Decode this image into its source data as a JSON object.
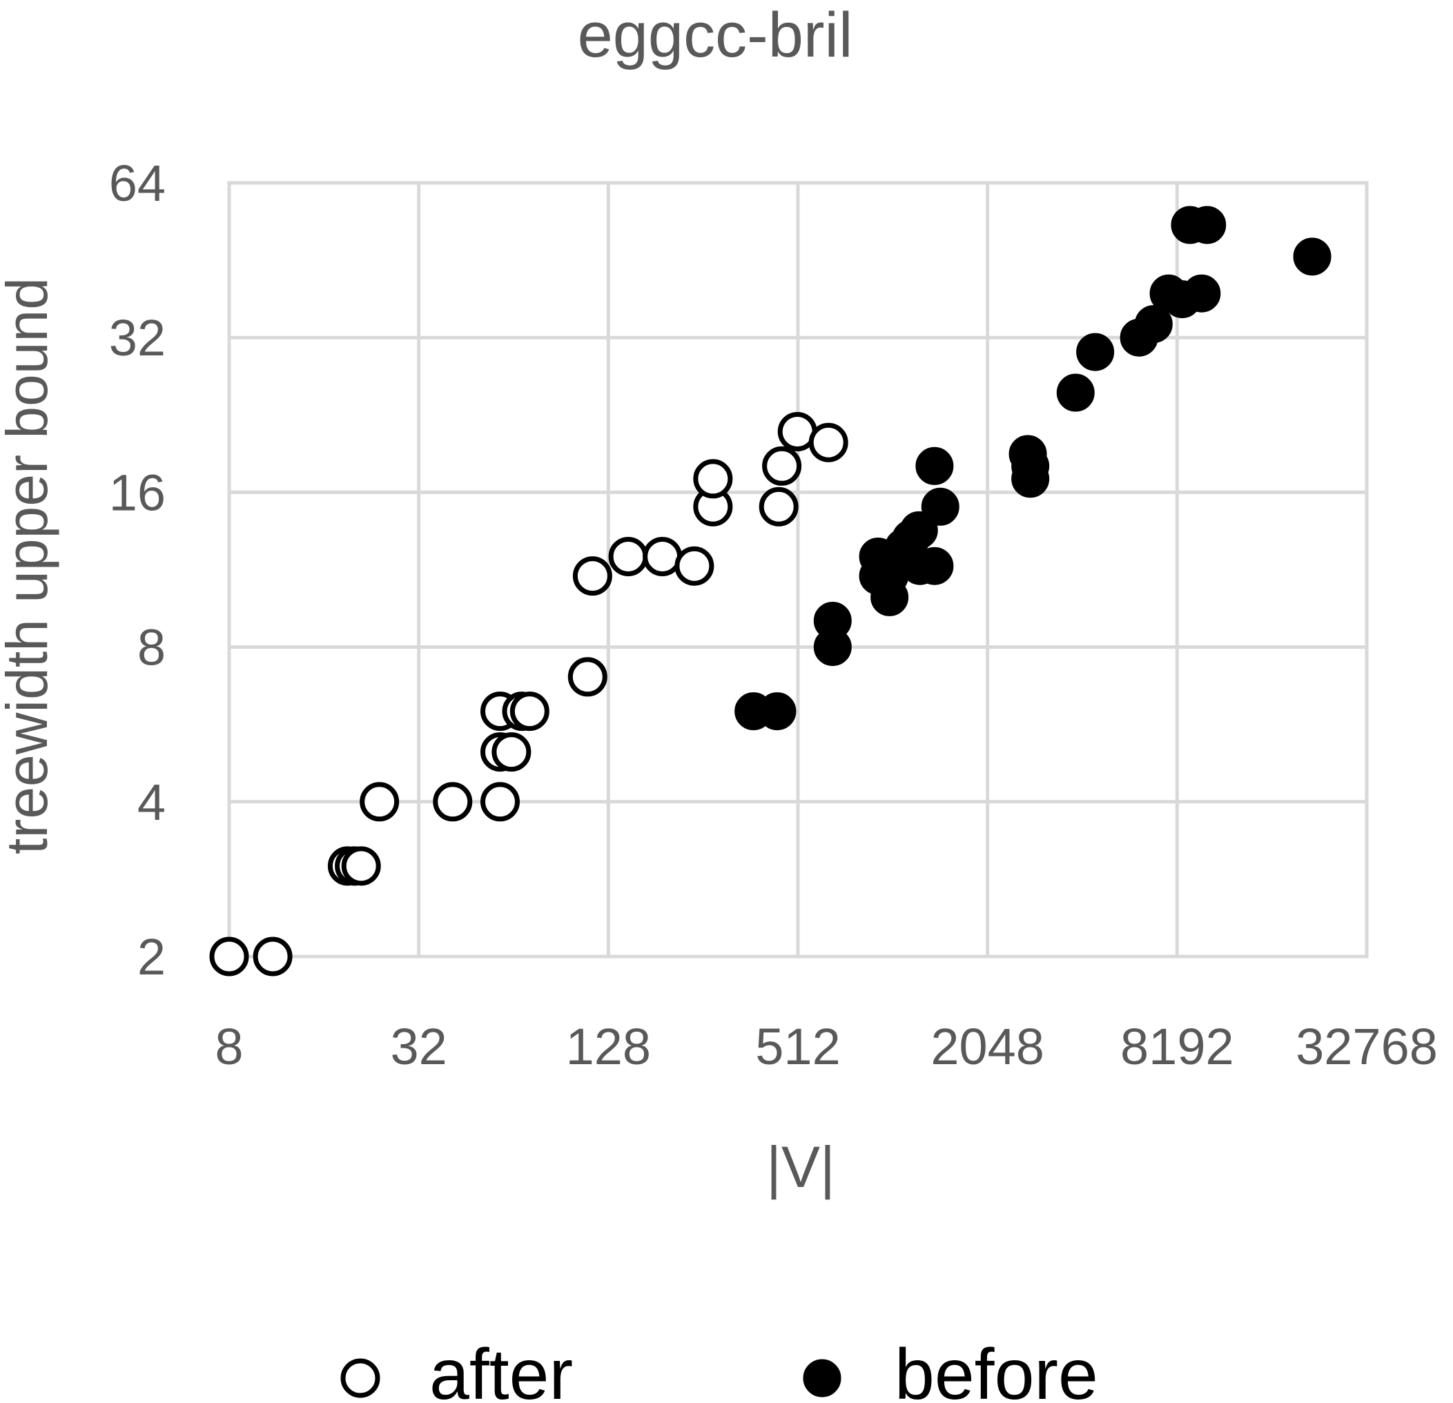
{
  "chart_data": {
    "type": "scatter",
    "title": "eggcc-bril",
    "xlabel": "|V|",
    "ylabel": "treewidth upper bound",
    "xscale": "log2",
    "yscale": "log2",
    "xlim": [
      8,
      32768
    ],
    "ylim": [
      2,
      64
    ],
    "xticks": [
      8,
      32,
      128,
      512,
      2048,
      8192,
      32768
    ],
    "yticks": [
      2,
      4,
      8,
      16,
      32,
      64
    ],
    "grid": true,
    "legend_position": "bottom",
    "colors": {
      "after_fill": "#ffffff",
      "before_fill": "#000000",
      "grid": "#d9d9d9",
      "text": "#595959"
    },
    "series": [
      {
        "name": "after",
        "marker": "open-circle",
        "points": [
          {
            "x": 8,
            "y": 2
          },
          {
            "x": 11,
            "y": 2
          },
          {
            "x": 19,
            "y": 3
          },
          {
            "x": 20,
            "y": 3
          },
          {
            "x": 21,
            "y": 3
          },
          {
            "x": 24,
            "y": 4
          },
          {
            "x": 41,
            "y": 4
          },
          {
            "x": 58,
            "y": 4
          },
          {
            "x": 58,
            "y": 5
          },
          {
            "x": 63,
            "y": 5
          },
          {
            "x": 58,
            "y": 6
          },
          {
            "x": 68,
            "y": 6
          },
          {
            "x": 72,
            "y": 6
          },
          {
            "x": 110,
            "y": 7
          },
          {
            "x": 114,
            "y": 11
          },
          {
            "x": 148,
            "y": 12
          },
          {
            "x": 190,
            "y": 12
          },
          {
            "x": 240,
            "y": 11.5
          },
          {
            "x": 275,
            "y": 15
          },
          {
            "x": 275,
            "y": 17
          },
          {
            "x": 445,
            "y": 15
          },
          {
            "x": 455,
            "y": 18
          },
          {
            "x": 510,
            "y": 21
          },
          {
            "x": 640,
            "y": 20
          }
        ]
      },
      {
        "name": "before",
        "marker": "filled-circle",
        "points": [
          {
            "x": 370,
            "y": 6
          },
          {
            "x": 440,
            "y": 6
          },
          {
            "x": 660,
            "y": 8
          },
          {
            "x": 660,
            "y": 9
          },
          {
            "x": 920,
            "y": 12
          },
          {
            "x": 920,
            "y": 11
          },
          {
            "x": 1000,
            "y": 10
          },
          {
            "x": 1000,
            "y": 11
          },
          {
            "x": 1070,
            "y": 12
          },
          {
            "x": 1110,
            "y": 12.5
          },
          {
            "x": 1170,
            "y": 13
          },
          {
            "x": 1240,
            "y": 13.5
          },
          {
            "x": 1250,
            "y": 11.5
          },
          {
            "x": 1390,
            "y": 11.5
          },
          {
            "x": 1390,
            "y": 18
          },
          {
            "x": 1450,
            "y": 15
          },
          {
            "x": 2750,
            "y": 19
          },
          {
            "x": 2800,
            "y": 18
          },
          {
            "x": 2800,
            "y": 17
          },
          {
            "x": 3900,
            "y": 25
          },
          {
            "x": 4500,
            "y": 30
          },
          {
            "x": 6200,
            "y": 32
          },
          {
            "x": 6900,
            "y": 34
          },
          {
            "x": 7700,
            "y": 39
          },
          {
            "x": 8500,
            "y": 38
          },
          {
            "x": 9000,
            "y": 53
          },
          {
            "x": 9800,
            "y": 39
          },
          {
            "x": 10200,
            "y": 53
          },
          {
            "x": 22000,
            "y": 46
          }
        ]
      }
    ]
  }
}
